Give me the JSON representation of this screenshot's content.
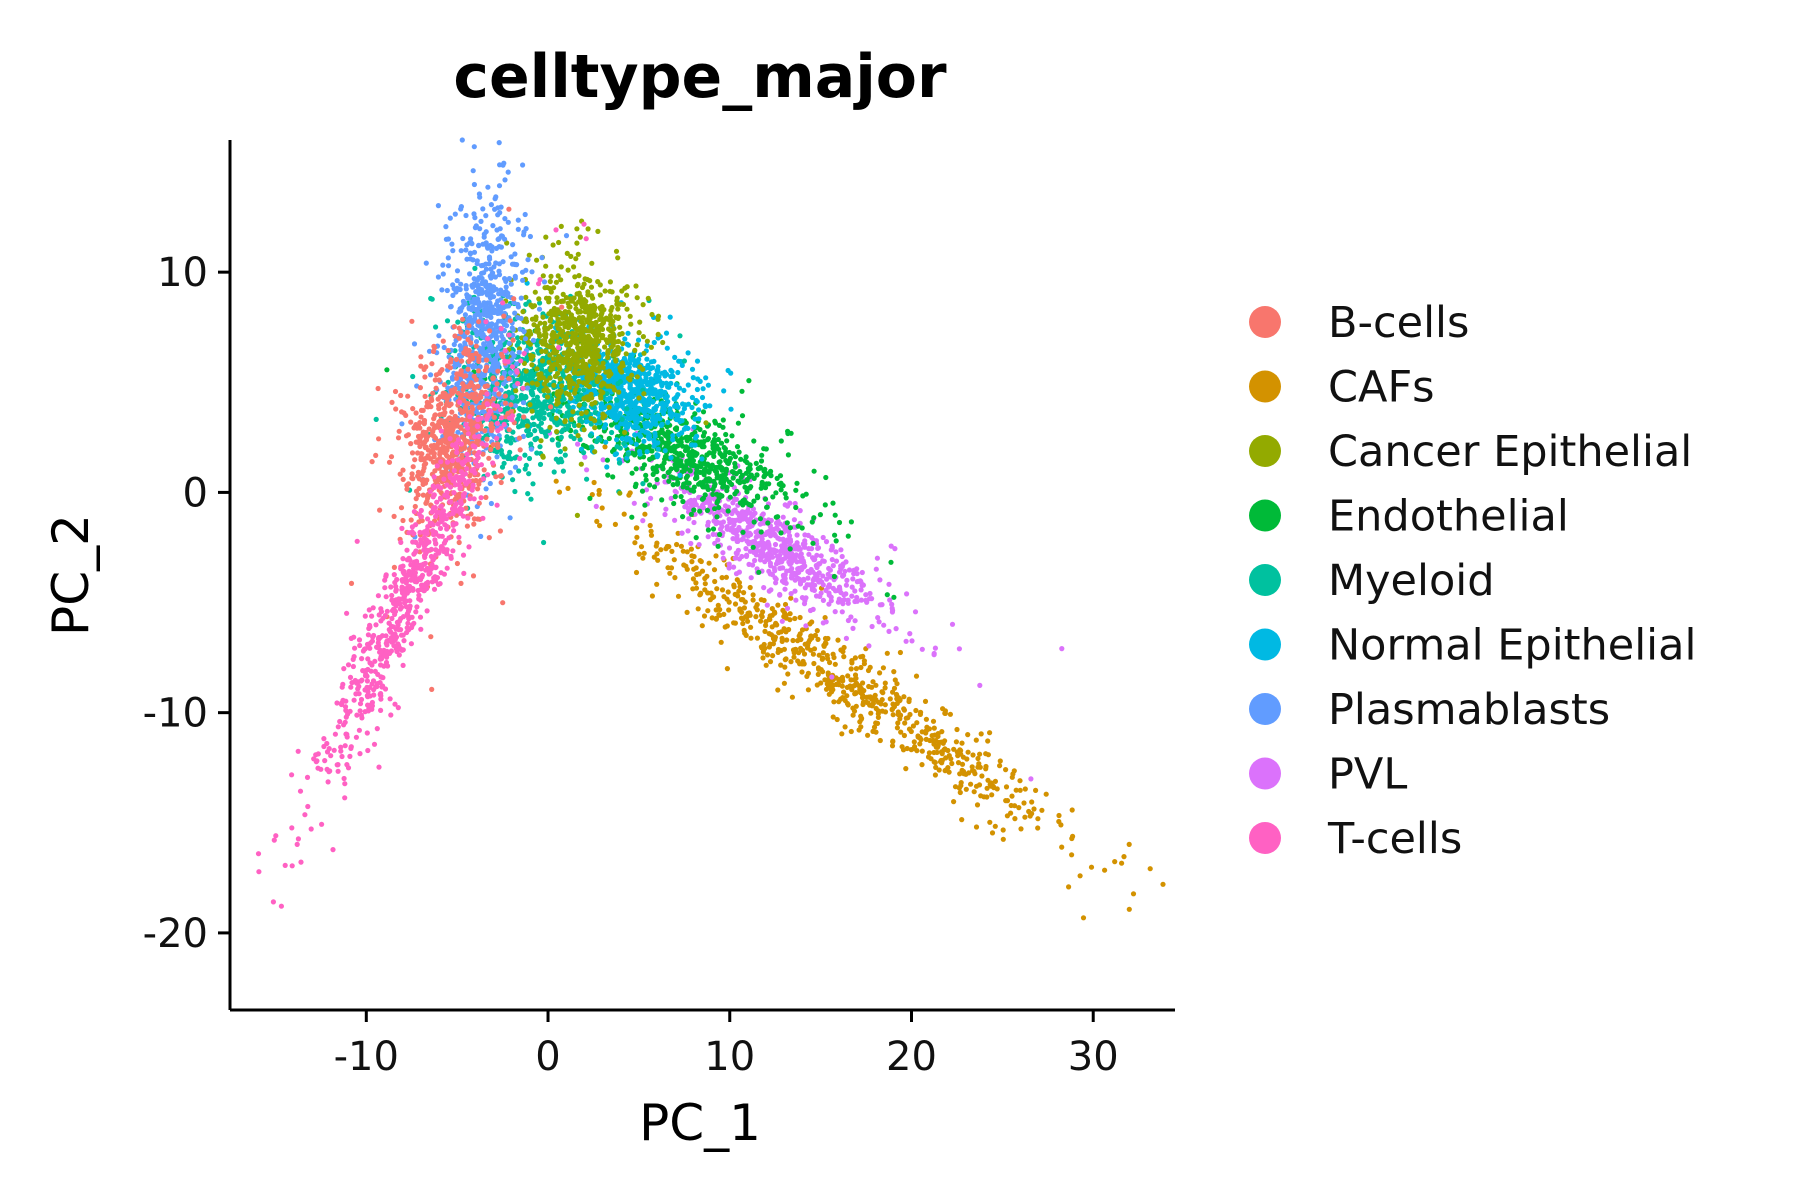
{
  "chart_data": {
    "type": "scatter",
    "title": "celltype_major",
    "xlabel": "PC_1",
    "ylabel": "PC_2",
    "xlim": [
      -17.5,
      34.5
    ],
    "ylim": [
      -23.5,
      16
    ],
    "xticks": [
      -10,
      0,
      10,
      20,
      30
    ],
    "yticks": [
      10,
      0,
      -10,
      -20
    ],
    "xtick_labels": [
      "-10",
      "0",
      "10",
      "20",
      "30"
    ],
    "ytick_labels": [
      "10",
      "0",
      "-10",
      "-20"
    ],
    "grid": false,
    "legend_position": "right",
    "series": [
      {
        "name": "B-cells",
        "color": "#F8766D",
        "clusters": [
          {
            "cx": -5.3,
            "cy": 2.3,
            "sx": 1.3,
            "sy": 2.0,
            "rho": 0.3
          }
        ]
      },
      {
        "name": "CAFs",
        "color": "#D39200",
        "clusters": [
          {
            "cx": 16.5,
            "cy": -8.6,
            "sx": 6.0,
            "sy": 3.6,
            "rho": -0.97
          }
        ]
      },
      {
        "name": "Cancer Epithelial",
        "color": "#93AA00",
        "clusters": [
          {
            "cx": 1.8,
            "cy": 7.0,
            "sx": 1.5,
            "sy": 1.5,
            "rho": 0.0
          }
        ]
      },
      {
        "name": "Endothelial",
        "color": "#00BA38",
        "clusters": [
          {
            "cx": 7.5,
            "cy": 1.8,
            "sx": 3.0,
            "sy": 1.5,
            "rho": -0.7
          }
        ]
      },
      {
        "name": "Myeloid",
        "color": "#00C19F",
        "clusters": [
          {
            "cx": -1.0,
            "cy": 4.5,
            "sx": 2.0,
            "sy": 1.6,
            "rho": 0.0
          }
        ]
      },
      {
        "name": "Normal Epithelial",
        "color": "#00B9E3",
        "clusters": [
          {
            "cx": 4.5,
            "cy": 4.5,
            "sx": 1.6,
            "sy": 1.1,
            "rho": -0.3
          }
        ]
      },
      {
        "name": "Plasmablasts",
        "color": "#619CFF",
        "clusters": [
          {
            "cx": -3.6,
            "cy": 7.2,
            "sx": 1.0,
            "sy": 2.8,
            "rho": 0.2
          }
        ]
      },
      {
        "name": "PVL",
        "color": "#DB72FB",
        "clusters": [
          {
            "cx": 12.5,
            "cy": -2.5,
            "sx": 3.0,
            "sy": 1.7,
            "rho": -0.85
          }
        ]
      },
      {
        "name": "T-cells",
        "color": "#FF61C3",
        "clusters": [
          {
            "cx": -7.6,
            "cy": -4.5,
            "sx": 2.5,
            "sy": 4.4,
            "rho": 0.95
          }
        ]
      }
    ]
  }
}
